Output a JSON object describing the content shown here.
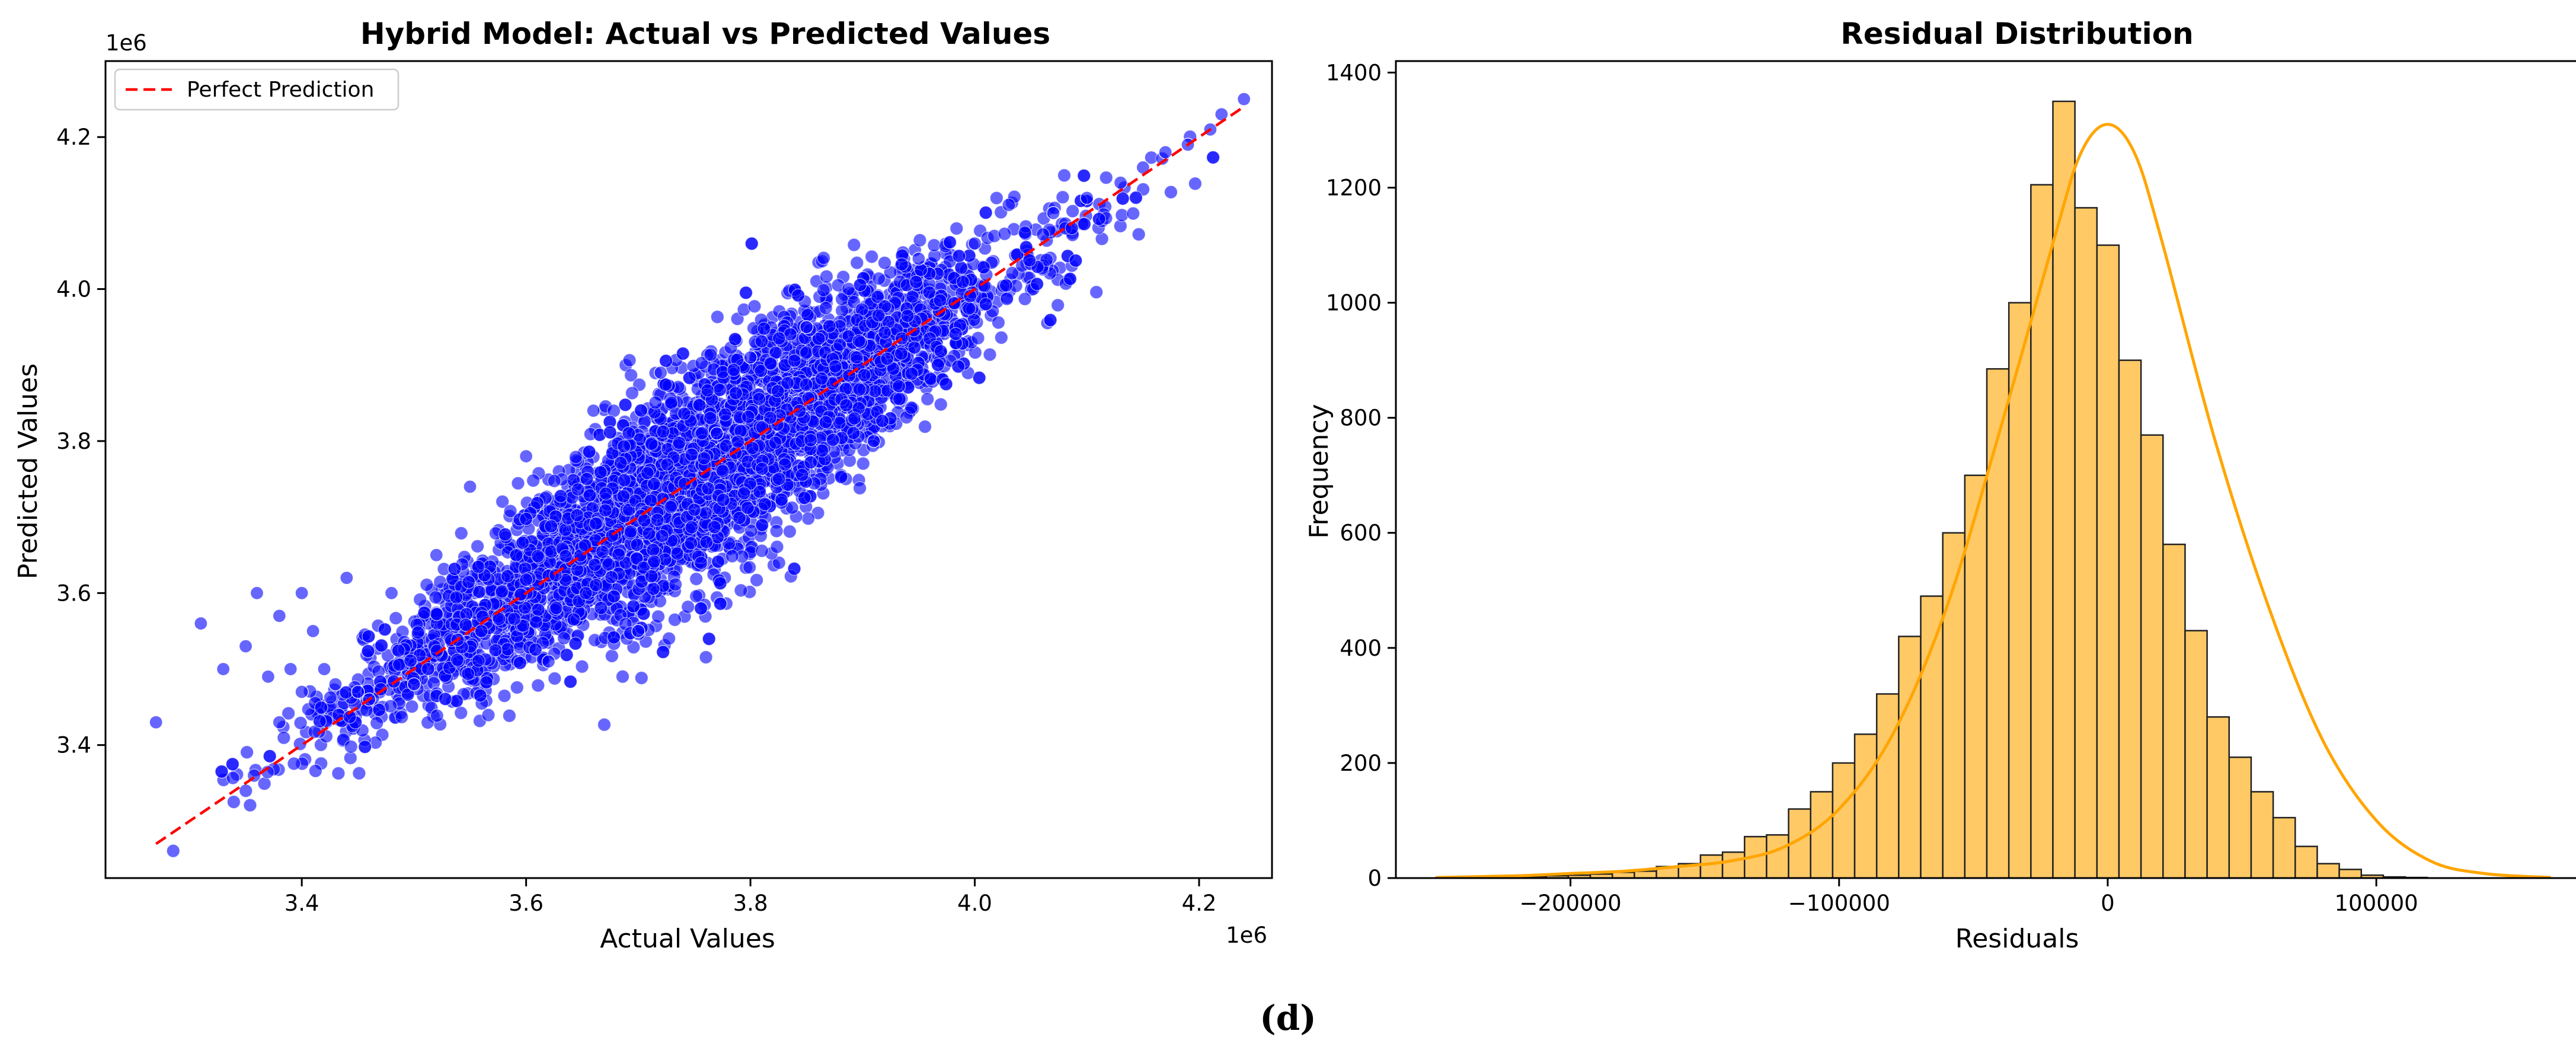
{
  "caption": "(d)",
  "colors": {
    "points": "#0000ff",
    "point_edge": "#ffffff",
    "perfect_line": "#ff0000",
    "bars": "#ffc966",
    "bar_edge": "#222222",
    "kde": "#ffa500",
    "axes": "#000000"
  },
  "chart_data": [
    {
      "type": "scatter",
      "title": "Hybrid Model: Actual vs Predicted Values",
      "xlabel": "Actual Values",
      "ylabel": "Predicted Values",
      "x_offset_label": "1e6",
      "y_offset_label": "1e6",
      "xlim": [
        3.225,
        4.265
      ],
      "ylim": [
        3.225,
        4.3
      ],
      "xticks": [
        3.4,
        3.6,
        3.8,
        4.0,
        4.2
      ],
      "yticks": [
        3.4,
        3.6,
        3.8,
        4.0,
        4.2
      ],
      "xtick_labels": [
        "3.4",
        "3.6",
        "3.8",
        "4.0",
        "4.2"
      ],
      "ytick_labels": [
        "3.4",
        "3.6",
        "3.8",
        "4.0",
        "4.2"
      ],
      "grid": false,
      "legend": {
        "position": "top-left",
        "entries": [
          "Perfect Prediction"
        ]
      },
      "series": [
        {
          "name": "Perfect Prediction",
          "kind": "line",
          "style": "dashed",
          "x": [
            3.27,
            4.24
          ],
          "y": [
            3.27,
            4.24
          ]
        },
        {
          "kind": "points",
          "description_of_cloud": "about 10000 points clustered along the diagonal; predicted ≈ actual with spread of roughly ±0.15e6 in the middle, narrowing toward the ends",
          "x": [
            3.27,
            3.31,
            3.33,
            3.35,
            3.36,
            3.37,
            3.38,
            3.38,
            3.39,
            3.4,
            3.4,
            3.41,
            3.42,
            3.43,
            3.44,
            3.45,
            3.46,
            3.48,
            3.5,
            3.52,
            3.55,
            3.6,
            3.62,
            3.66,
            3.7,
            3.72,
            3.77,
            3.8,
            3.85,
            3.91,
            3.95,
            4.0,
            4.07,
            4.1,
            4.13,
            4.15,
            4.17,
            4.19,
            4.21,
            4.22,
            4.24
          ],
          "y": [
            3.43,
            3.56,
            3.5,
            3.53,
            3.6,
            3.49,
            3.43,
            3.57,
            3.5,
            3.47,
            3.6,
            3.55,
            3.5,
            3.48,
            3.62,
            3.47,
            3.46,
            3.6,
            3.48,
            3.65,
            3.74,
            3.78,
            3.51,
            3.84,
            3.55,
            3.89,
            3.81,
            3.91,
            3.95,
            3.8,
            4.04,
            4.06,
            4.1,
            4.12,
            4.14,
            4.16,
            4.18,
            4.19,
            4.21,
            4.23,
            4.25
          ]
        }
      ]
    },
    {
      "type": "bar",
      "title": "Residual Distribution",
      "xlabel": "Residuals",
      "ylabel": "Frequency",
      "xlim": [
        -265000,
        175000
      ],
      "ylim": [
        0,
        1420
      ],
      "xticks": [
        -200000,
        -100000,
        0,
        100000
      ],
      "yticks": [
        0,
        200,
        400,
        600,
        800,
        1000,
        1200,
        1400
      ],
      "xtick_labels": [
        "−200000",
        "−100000",
        "0",
        "100000"
      ],
      "ytick_labels": [
        "0",
        "200",
        "400",
        "600",
        "800",
        "1000",
        "1200",
        "1400"
      ],
      "grid": false,
      "bin_start": -250000,
      "bin_width": 8200,
      "values": [
        1,
        1,
        2,
        2,
        3,
        4,
        5,
        7,
        10,
        12,
        20,
        25,
        40,
        45,
        72,
        75,
        120,
        150,
        200,
        250,
        320,
        420,
        490,
        600,
        700,
        885,
        1000,
        1205,
        1350,
        1165,
        1100,
        900,
        770,
        580,
        430,
        280,
        210,
        150,
        105,
        55,
        25,
        15,
        5,
        2,
        1
      ],
      "kde": {
        "x": [
          -250000,
          -220000,
          -200000,
          -180000,
          -160000,
          -140000,
          -120000,
          -100000,
          -80000,
          -60000,
          -40000,
          -20000,
          -10000,
          0,
          10000,
          20000,
          40000,
          60000,
          80000,
          100000,
          120000,
          140000,
          165000
        ],
        "y": [
          1,
          4,
          8,
          12,
          20,
          30,
          55,
          120,
          250,
          470,
          780,
          1110,
          1260,
          1310,
          1260,
          1110,
          760,
          470,
          240,
          100,
          30,
          8,
          1
        ]
      }
    }
  ]
}
